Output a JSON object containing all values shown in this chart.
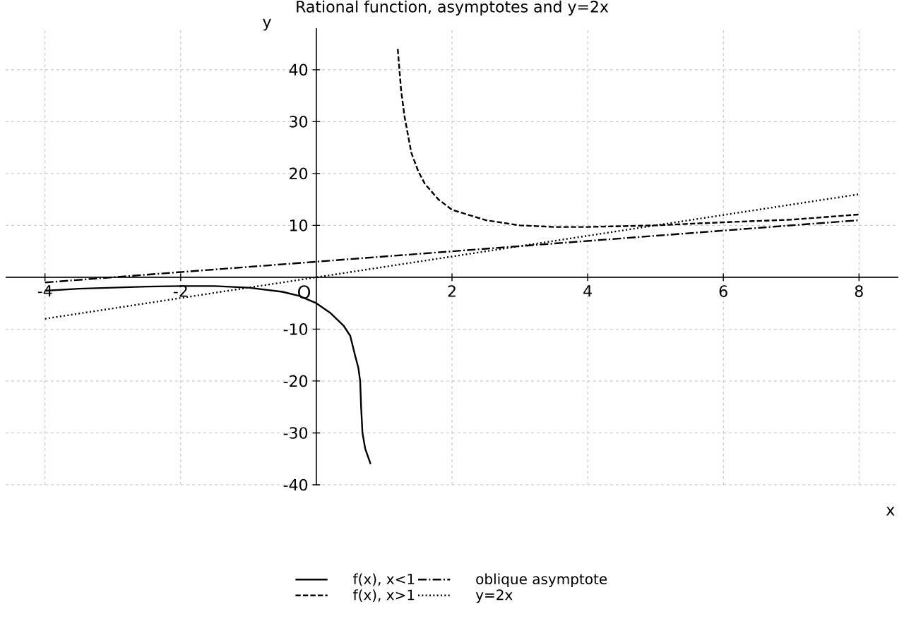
{
  "chart_data": {
    "type": "line",
    "title": "Rational function, asymptotes and y=2x",
    "xlabel": "x",
    "ylabel": "y",
    "xlim": [
      -4.58,
      8.58
    ],
    "ylim": [
      -40,
      48
    ],
    "xticks": [
      -4,
      -2,
      2,
      4,
      6,
      8
    ],
    "yticks": [
      -40,
      -30,
      -20,
      -10,
      10,
      20,
      30,
      40
    ],
    "grid": true,
    "legend": "bottom",
    "annotations": [
      {
        "text": "O",
        "x": 0,
        "y": 0
      }
    ],
    "series": [
      {
        "name": "f(x), x<1",
        "color": "#000000",
        "line_style": "solid",
        "x": [
          -4,
          -3.5,
          -3,
          -2.5,
          -2,
          -1.5,
          -1,
          -0.5,
          -0.25,
          0,
          0.2,
          0.4,
          0.5,
          0.57,
          0.62,
          0.646,
          0.66,
          0.68,
          0.72,
          0.8
        ],
        "values": [
          -2.6,
          -2.2,
          -2.0,
          -1.8,
          -1.7,
          -1.7,
          -2.0,
          -2.8,
          -3.6,
          -5,
          -6.8,
          -9.3,
          -11.3,
          -15,
          -17.5,
          -20,
          -25,
          -30,
          -33,
          -36
        ]
      },
      {
        "name": "f(x), x>1",
        "color": "#000000",
        "line_style": "dashed",
        "x": [
          1.2,
          1.25,
          1.3,
          1.4,
          1.5,
          1.6,
          1.8,
          2,
          2.5,
          3,
          3.5,
          4,
          5,
          6,
          7,
          8
        ],
        "values": [
          44,
          36,
          31,
          24,
          20.5,
          18,
          15,
          13,
          11,
          10,
          9.7,
          9.7,
          10,
          10.6,
          11.1,
          12.1
        ]
      },
      {
        "name": "oblique asymptote",
        "color": "#000000",
        "line_style": "dashdot",
        "x": [
          -4,
          8
        ],
        "values": [
          -1,
          11
        ]
      },
      {
        "name": "y=2x",
        "color": "#000000",
        "line_style": "dotted",
        "x": [
          -4,
          8
        ],
        "values": [
          -8,
          16
        ]
      }
    ]
  }
}
